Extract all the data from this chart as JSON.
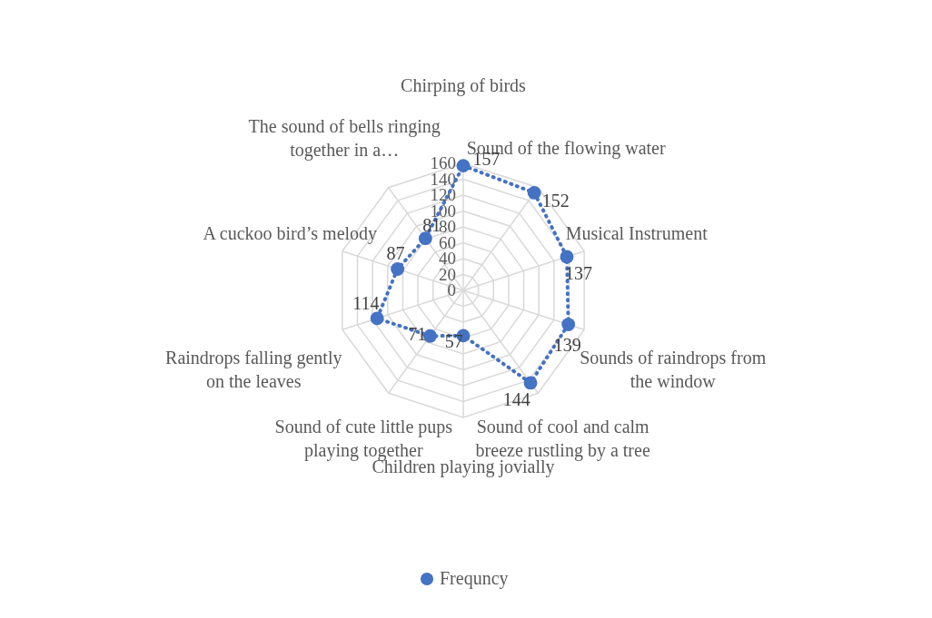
{
  "chart_data": {
    "type": "radar",
    "categories": [
      "Chirping of birds",
      "Sound of the flowing water",
      "Musical Instrument",
      "Sounds of raindrops from the window",
      "Sound of cool and calm breeze rustling by a tree",
      "Children playing jovially",
      "Sound of cute little pups playing together",
      "Raindrops falling gently on the leaves",
      "A cuckoo bird’s melody",
      "The sound of bells ringing together in a…"
    ],
    "series": [
      {
        "name": "Frequncy",
        "color": "#4472c4",
        "values": [
          157,
          152,
          137,
          139,
          144,
          57,
          71,
          114,
          87,
          81
        ]
      }
    ],
    "ylim": [
      0,
      160
    ],
    "yticks": [
      0,
      20,
      40,
      60,
      80,
      100,
      120,
      140,
      160
    ],
    "grid": true,
    "legend": "bottom",
    "marker": "circle",
    "line_style": "dotted",
    "data_labels": true
  }
}
